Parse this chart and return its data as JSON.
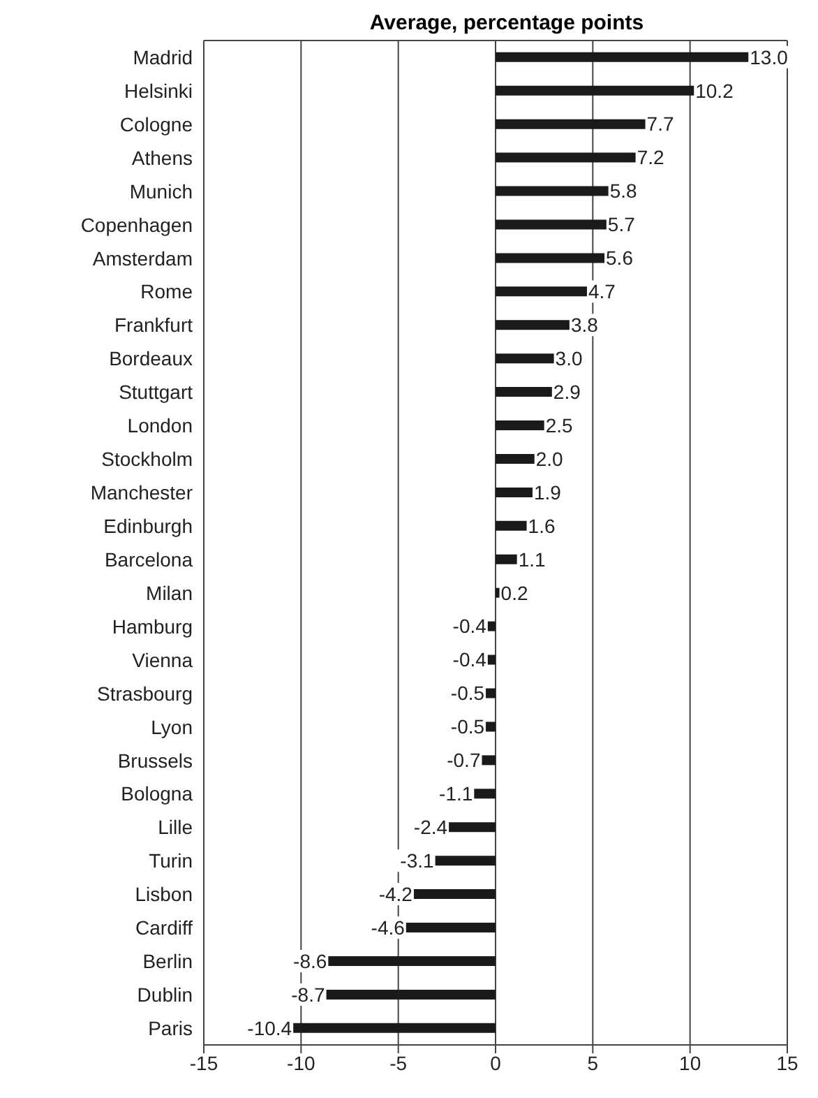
{
  "chart_data": {
    "type": "bar",
    "orientation": "horizontal",
    "title": "Average, percentage points",
    "categories": [
      "Madrid",
      "Helsinki",
      "Cologne",
      "Athens",
      "Munich",
      "Copenhagen",
      "Amsterdam",
      "Rome",
      "Frankfurt",
      "Bordeaux",
      "Stuttgart",
      "London",
      "Stockholm",
      "Manchester",
      "Edinburgh",
      "Barcelona",
      "Milan",
      "Hamburg",
      "Vienna",
      "Strasbourg",
      "Lyon",
      "Brussels",
      "Bologna",
      "Lille",
      "Turin",
      "Lisbon",
      "Cardiff",
      "Berlin",
      "Dublin",
      "Paris"
    ],
    "values": [
      13.0,
      10.2,
      7.7,
      7.2,
      5.8,
      5.7,
      5.6,
      4.7,
      3.8,
      3.0,
      2.9,
      2.5,
      2.0,
      1.9,
      1.6,
      1.1,
      0.2,
      -0.4,
      -0.4,
      -0.5,
      -0.5,
      -0.7,
      -1.1,
      -2.4,
      -3.1,
      -4.2,
      -4.6,
      -8.6,
      -8.7,
      -10.4
    ],
    "color": "#1a1a1a",
    "data_labels": true,
    "value_labels": [
      "13.0",
      "10.2",
      "7.7",
      "7.2",
      "5.8",
      "5.7",
      "5.6",
      "4.7",
      "3.8",
      "3.0",
      "2.9",
      "2.5",
      "2.0",
      "1.9",
      "1.6",
      "1.1",
      "0.2",
      "-0.4",
      "-0.4",
      "-0.5",
      "-0.5",
      "-0.7",
      "-1.1",
      "-2.4",
      "-3.1",
      "-4.2",
      "-4.6",
      "-8.6",
      "-8.7",
      "-10.4"
    ],
    "xlim": [
      -15,
      15
    ],
    "xticks": [
      -15,
      -10,
      -5,
      0,
      5,
      10,
      15
    ],
    "grid": "x"
  }
}
